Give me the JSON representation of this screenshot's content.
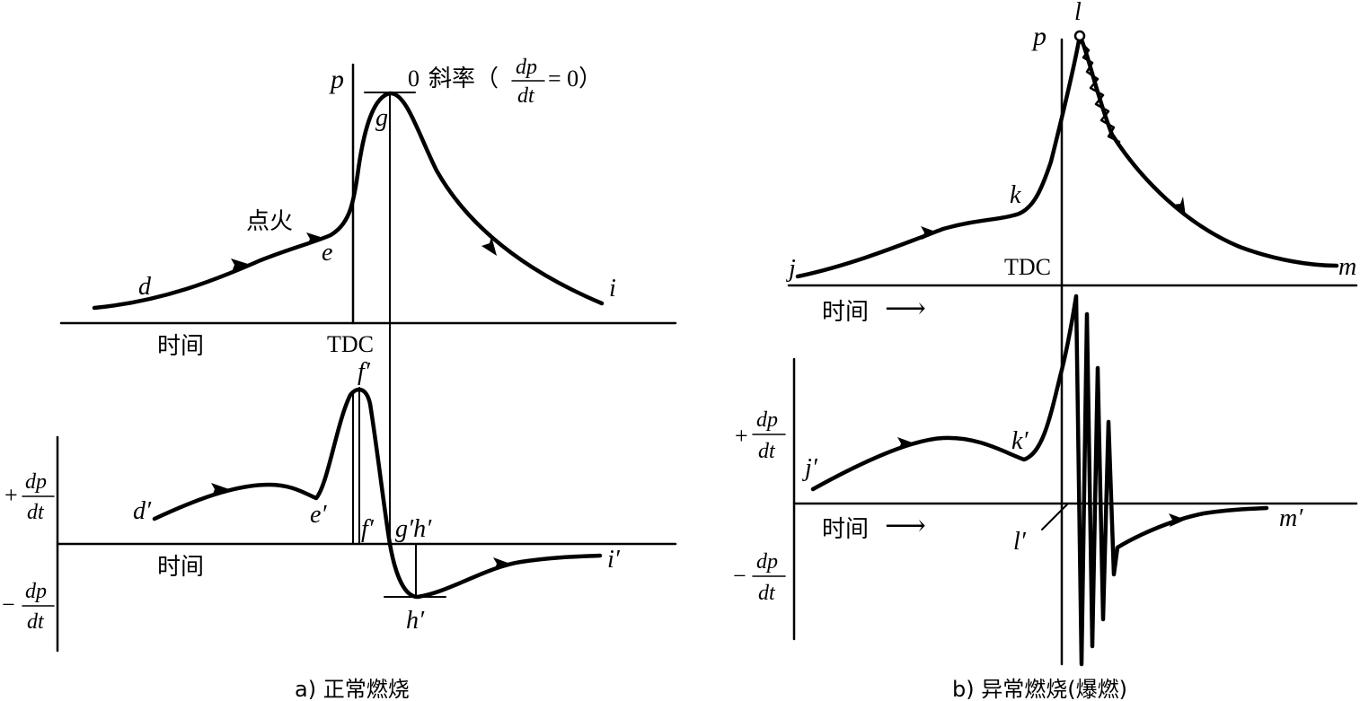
{
  "panel_a": {
    "caption": "a) 正常燃烧",
    "top": {
      "y_axis": "p",
      "x_axis": "时间",
      "tdc": "TDC",
      "ignition": "点火",
      "slope_zero": "0",
      "slope_text": "斜率（",
      "slope_num": "dp",
      "slope_den": "dt",
      "slope_tail": "= 0）",
      "points": {
        "d": "d",
        "e": "e",
        "g": "g",
        "i": "i"
      }
    },
    "bottom": {
      "plus": "+",
      "minus": "−",
      "frac_num": "dp",
      "frac_den": "dt",
      "x_axis": "时间",
      "points": {
        "d": "d′",
        "e": "e′",
        "f_top": "f′",
        "f_bottom": "f′",
        "gh": "g′h′",
        "h": "h′",
        "i": "i′"
      }
    }
  },
  "panel_b": {
    "caption": "b) 异常燃烧(爆燃)",
    "top": {
      "y_axis": "p",
      "x_axis": "时间",
      "tdc": "TDC",
      "arrow": "⟶",
      "points": {
        "j": "j",
        "k": "k",
        "l": "l",
        "m": "m"
      }
    },
    "bottom": {
      "plus": "+",
      "minus": "−",
      "frac_num": "dp",
      "frac_den": "dt",
      "x_axis": "时间",
      "arrow": "⟶",
      "points": {
        "j": "j′",
        "k": "k′",
        "l": "l′",
        "m": "m′"
      }
    }
  }
}
